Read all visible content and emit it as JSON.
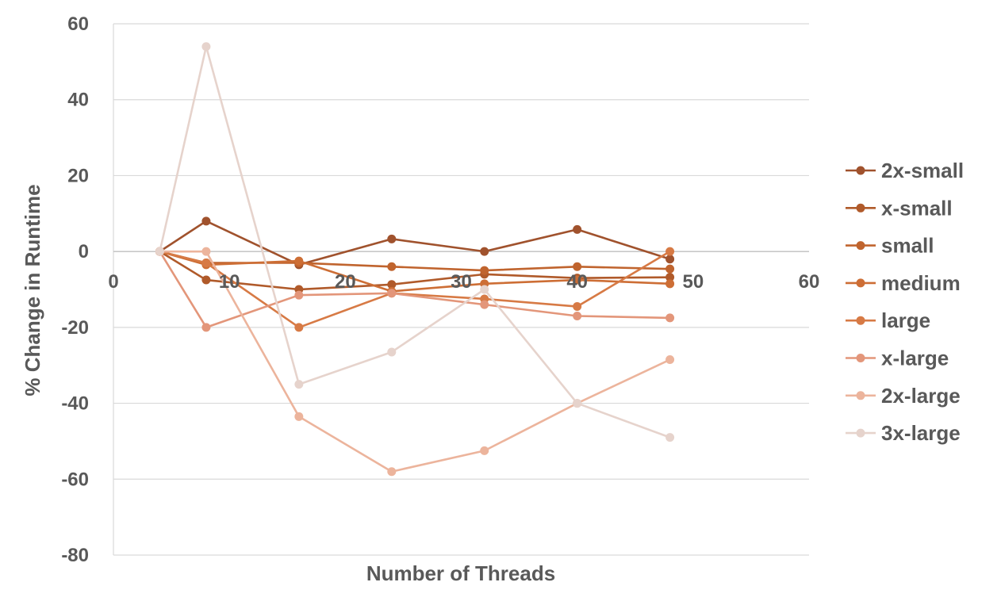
{
  "chart_data": {
    "type": "scatter",
    "title": "",
    "xlabel": "Number of Threads",
    "ylabel": "% Change in Runtime",
    "xlim": [
      0,
      60
    ],
    "ylim": [
      -80,
      60
    ],
    "x_ticks": [
      0,
      10,
      20,
      30,
      40,
      50,
      60
    ],
    "y_ticks": [
      -80,
      -60,
      -40,
      -20,
      0,
      20,
      40,
      60
    ],
    "x_tick_labels": [
      "0",
      "10",
      "20",
      "30",
      "40",
      "50",
      "60"
    ],
    "y_tick_labels": [
      "-80",
      "-60",
      "-40",
      "-20",
      "0",
      "20",
      "40",
      "60"
    ],
    "grid": "horizontal",
    "legend": "right",
    "x": [
      4,
      8,
      16,
      24,
      32,
      40,
      48
    ],
    "series": [
      {
        "name": "2x-small",
        "color": "#a0522d",
        "values": [
          0,
          8,
          -3.5,
          3.3,
          0,
          5.8,
          -2
        ]
      },
      {
        "name": "x-small",
        "color": "#b05a2a",
        "values": [
          0,
          -7.5,
          -10,
          -8.7,
          -6,
          -7,
          -6.8
        ]
      },
      {
        "name": "small",
        "color": "#c0642e",
        "values": [
          0,
          -3,
          -3,
          -4,
          -5,
          -4,
          -4.6
        ]
      },
      {
        "name": "medium",
        "color": "#cd6e35",
        "values": [
          0,
          -3.5,
          -2.5,
          -10.5,
          -8.5,
          -7.5,
          -8.5
        ]
      },
      {
        "name": "large",
        "color": "#d77a45",
        "values": [
          0,
          -3,
          -20,
          -11,
          -12.5,
          -14.5,
          0
        ]
      },
      {
        "name": "x-large",
        "color": "#e3967a",
        "values": [
          0,
          -20,
          -11.5,
          -11,
          -14,
          -17,
          -17.5
        ]
      },
      {
        "name": "2x-large",
        "color": "#ecb49c",
        "values": [
          0,
          0,
          -43.5,
          -58,
          -52.5,
          -40,
          -28.5
        ]
      },
      {
        "name": "3x-large",
        "color": "#e6d3cc",
        "values": [
          0,
          54,
          -35,
          -26.5,
          -10,
          -40,
          -49
        ]
      }
    ]
  }
}
